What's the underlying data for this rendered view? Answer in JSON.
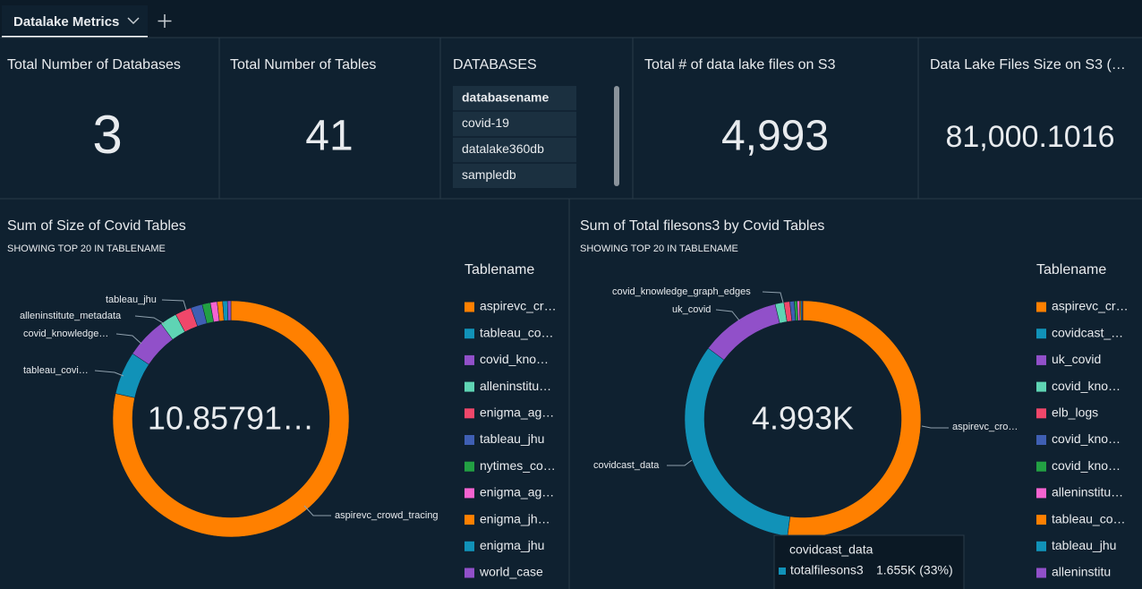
{
  "tab": {
    "title": "Datalake Metrics"
  },
  "kpis": [
    {
      "title": "Total Number of Databases",
      "value": "3"
    },
    {
      "title": "Total Number of Tables",
      "value": "41"
    },
    {
      "title": "Total # of data lake files on S3",
      "value": "4,993"
    },
    {
      "title": "Data Lake Files Size on S3 (…",
      "value": "81,000.1016"
    }
  ],
  "databases": {
    "title": "DATABASES",
    "header": "databasename",
    "rows": [
      "covid-19",
      "datalake360db",
      "sampledb"
    ]
  },
  "chart_data": [
    {
      "type": "pie",
      "title": "Sum of Size of Covid Tables",
      "subtitle": "SHOWING TOP 20 IN TABLENAME",
      "center_label": "10.85791…",
      "legend_title": "Tablename",
      "categories": [
        "aspirevc_cr…",
        "tableau_co…",
        "covid_kno…",
        "alleninstitu…",
        "enigma_ag…",
        "tableau_jhu",
        "nytimes_co…",
        "enigma_ag…",
        "enigma_jh…",
        "enigma_jhu",
        "world_case"
      ],
      "values": [
        8.41,
        0.63,
        0.6,
        0.25,
        0.24,
        0.17,
        0.12,
        0.1,
        0.08,
        0.07,
        0.05
      ],
      "colors": [
        "#ff8000",
        "#1192b8",
        "#9150c9",
        "#5fd4b4",
        "#f0476a",
        "#3f5fb3",
        "#22a043",
        "#f563d0",
        "#ff8000",
        "#1192b8",
        "#9150c9"
      ],
      "callouts": [
        "tableau_jhu",
        "alleninstitute_metadata",
        "covid_knowledge…",
        "tableau_covi…",
        "aspirevc_crowd_tracing"
      ]
    },
    {
      "type": "pie",
      "title": "Sum of Total filesons3 by Covid Tables",
      "subtitle": "SHOWING TOP 20 IN TABLENAME",
      "center_label": "4.993K",
      "legend_title": "Tablename",
      "categories": [
        "aspirevc_cr…",
        "covidcast_…",
        "uk_covid",
        "covid_kno…",
        "elb_logs",
        "covid_kno…",
        "covid_kno…",
        "alleninstitu…",
        "tableau_co…",
        "tableau_jhu",
        "alleninstitu"
      ],
      "values": [
        2600,
        1655,
        550,
        60,
        40,
        30,
        20,
        15,
        10,
        8,
        5
      ],
      "colors": [
        "#ff8000",
        "#1192b8",
        "#9150c9",
        "#5fd4b4",
        "#f0476a",
        "#3f5fb3",
        "#22a043",
        "#f563d0",
        "#ff8000",
        "#1192b8",
        "#9150c9"
      ],
      "callouts": [
        "covid_knowledge_graph_edges",
        "uk_covid",
        "covidcast_data",
        "aspirevc_cro…"
      ],
      "tooltip": {
        "category": "covidcast_data",
        "measure": "totalfilesons3",
        "value_label": "1.655K (33%)"
      }
    }
  ]
}
